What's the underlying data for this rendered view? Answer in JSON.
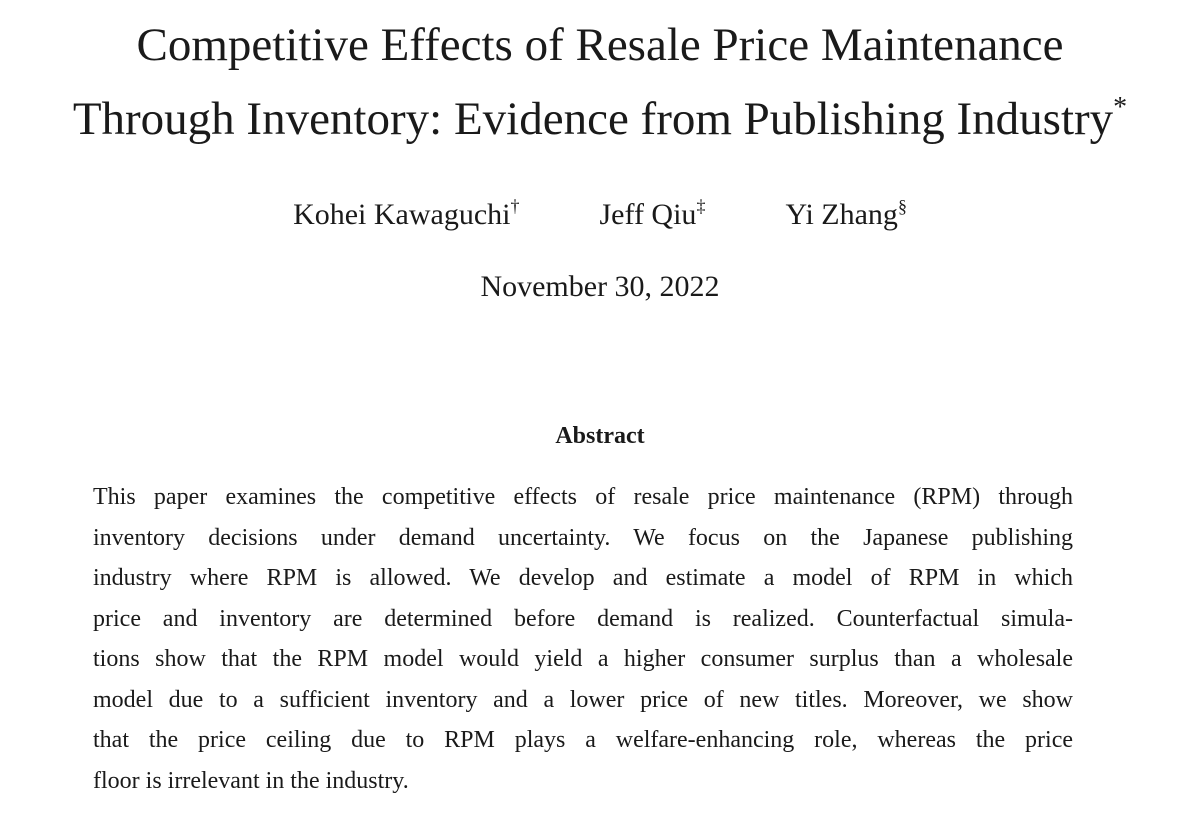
{
  "title": {
    "lines": [
      "Competitive Effects of Resale Price Maintenance",
      "Through Inventory: Evidence from Publishing Industry"
    ],
    "mark": "*"
  },
  "authors": [
    {
      "name": "Kohei Kawaguchi",
      "mark": "†"
    },
    {
      "name": "Jeff Qiu",
      "mark": "‡"
    },
    {
      "name": "Yi Zhang",
      "mark": "§"
    }
  ],
  "date": "November 30, 2022",
  "abstract": {
    "heading": "Abstract",
    "lines": [
      "This paper examines the competitive effects of resale price maintenance (RPM) through",
      "inventory decisions under demand uncertainty. We focus on the Japanese publishing",
      "industry where RPM is allowed. We develop and estimate a model of RPM in which",
      "price and inventory are determined before demand is realized. Counterfactual simula-",
      "tions show that the RPM model would yield a higher consumer surplus than a wholesale",
      "model due to a sufficient inventory and a lower price of new titles. Moreover, we show",
      "that the price ceiling due to RPM plays a welfare-enhancing role, whereas the price",
      "floor is irrelevant in the industry."
    ]
  }
}
